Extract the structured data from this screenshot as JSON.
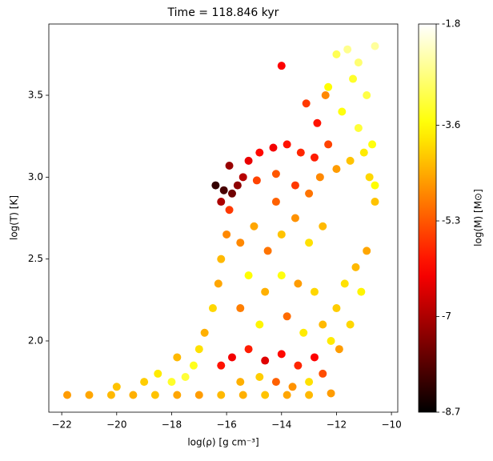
{
  "chart_data": {
    "type": "scatter",
    "title": "Time = 118.846 kyr",
    "xlabel": "log(ρ) [g cm⁻³]",
    "ylabel": "log(T) [K]",
    "colorbar_label": "log(M) [M⊙]",
    "colormap": "hot",
    "x": [
      -21.8,
      -21,
      -20.2,
      -19.4,
      -18.6,
      -17.8,
      -17,
      -16.2,
      -15.4,
      -14.6,
      -13.8,
      -13,
      -12.2,
      -20,
      -19,
      -18.5,
      -18,
      -17.5,
      -17.2,
      -17.8,
      -17,
      -16.8,
      -16.5,
      -16.3,
      -16.2,
      -16,
      -15.9,
      -16.4,
      -16.1,
      -15.8,
      -15.6,
      -16.2,
      -15.4,
      -15.9,
      -15.2,
      -14.8,
      -14.3,
      -13.8,
      -13.3,
      -12.8,
      -12.3,
      -14.9,
      -14.2,
      -13.5,
      -12.6,
      -12,
      -11.5,
      -11,
      -10.7,
      -11.2,
      -10.8,
      -10.6,
      -14,
      -13.1,
      -12.4,
      -12.7,
      -12,
      -11.6,
      -11.2,
      -11.4,
      -10.9,
      -12.3,
      -10.6,
      -11.8,
      -15.5,
      -15,
      -14.5,
      -14,
      -13.5,
      -13,
      -12.5,
      -15.2,
      -14.6,
      -14,
      -13.4,
      -12.8,
      -15.5,
      -14.8,
      -13.8,
      -13.2,
      -12.5,
      -14.2,
      -13,
      -12,
      -11.7,
      -11.3,
      -10.9,
      -12.2,
      -11.9,
      -11.5,
      -11.1,
      -10.6,
      -16.2,
      -15.8,
      -15.2,
      -14.6,
      -14,
      -13.4,
      -12.8,
      -15.5,
      -14.8,
      -14.2,
      -13.6,
      -13,
      -12.5
    ],
    "y": [
      1.67,
      1.67,
      1.67,
      1.67,
      1.67,
      1.67,
      1.67,
      1.67,
      1.67,
      1.67,
      1.67,
      1.67,
      1.68,
      1.72,
      1.75,
      1.8,
      1.75,
      1.78,
      1.85,
      1.9,
      1.95,
      2.05,
      2.2,
      2.35,
      2.5,
      2.65,
      2.8,
      2.95,
      2.92,
      2.9,
      2.95,
      2.85,
      3.0,
      3.07,
      3.1,
      3.15,
      3.18,
      3.2,
      3.15,
      3.12,
      3.2,
      2.98,
      3.02,
      2.95,
      3.0,
      3.05,
      3.1,
      3.15,
      3.2,
      3.3,
      3.0,
      2.95,
      3.68,
      3.45,
      3.5,
      3.33,
      3.75,
      3.78,
      3.7,
      3.6,
      3.5,
      3.55,
      3.8,
      3.4,
      2.6,
      2.7,
      2.55,
      2.65,
      2.75,
      2.6,
      2.7,
      2.4,
      2.3,
      2.4,
      2.35,
      2.3,
      2.2,
      2.1,
      2.15,
      2.05,
      2.1,
      2.85,
      2.9,
      2.2,
      2.35,
      2.45,
      2.55,
      2.0,
      1.95,
      2.1,
      2.3,
      2.85,
      1.85,
      1.9,
      1.95,
      1.88,
      1.92,
      1.85,
      1.9,
      1.75,
      1.78,
      1.75,
      1.72,
      1.75,
      1.8
    ],
    "c": [
      -4.6,
      -4.5,
      -4.3,
      -4.4,
      -4.2,
      -4.5,
      -4.6,
      -4.3,
      -4.4,
      -4.2,
      -4.5,
      -4.3,
      -4.6,
      -4.2,
      -4.1,
      -3.8,
      -3.3,
      -3.2,
      -3.4,
      -4.3,
      -3.9,
      -4.4,
      -4,
      -4.5,
      -4.3,
      -4.8,
      -5.6,
      -8.2,
      -8,
      -7.6,
      -7.3,
      -7,
      -6.9,
      -7.2,
      -6.4,
      -6.1,
      -6.3,
      -6,
      -5.8,
      -5.9,
      -5.5,
      -5.5,
      -5.3,
      -5.6,
      -4.8,
      -4.6,
      -4.2,
      -3.8,
      -3.5,
      -3.2,
      -4,
      -3.6,
      -6.2,
      -5.6,
      -4.8,
      -6,
      -3,
      -2.6,
      -2.8,
      -3.3,
      -3.1,
      -3.6,
      -2.5,
      -3.5,
      -4.8,
      -4.5,
      -5,
      -4.2,
      -4.7,
      -3.9,
      -4.3,
      -3.6,
      -4.4,
      -3.5,
      -4.6,
      -4,
      -4.9,
      -3.7,
      -5.1,
      -3.8,
      -4.3,
      -5.2,
      -5,
      -4.1,
      -3.9,
      -4.3,
      -4.5,
      -3.8,
      -4.6,
      -4,
      -3.7,
      -4.2,
      -6,
      -6.3,
      -5.9,
      -6.5,
      -6.1,
      -5.8,
      -6.2,
      -4.4,
      -4.1,
      -5.2,
      -4.7,
      -3.9,
      -5.4
    ],
    "xlim": [
      -22.47,
      -9.77
    ],
    "ylim": [
      1.565,
      3.935
    ],
    "xticks": [
      {
        "value": -22,
        "label": "−22"
      },
      {
        "value": -20,
        "label": "−20"
      },
      {
        "value": -18,
        "label": "−18"
      },
      {
        "value": -16,
        "label": "−16"
      },
      {
        "value": -14,
        "label": "−14"
      },
      {
        "value": -12,
        "label": "−12"
      },
      {
        "value": -10,
        "label": "−10"
      }
    ],
    "yticks": [
      {
        "value": 2,
        "label": "2.0"
      },
      2.5,
      {
        "value": 3,
        "label": "3.0"
      },
      3.5
    ],
    "clim": [
      -8.7,
      -1.8
    ],
    "cticks": [
      -8.7,
      -7.0,
      -5.3,
      -3.6,
      -1.8
    ]
  }
}
